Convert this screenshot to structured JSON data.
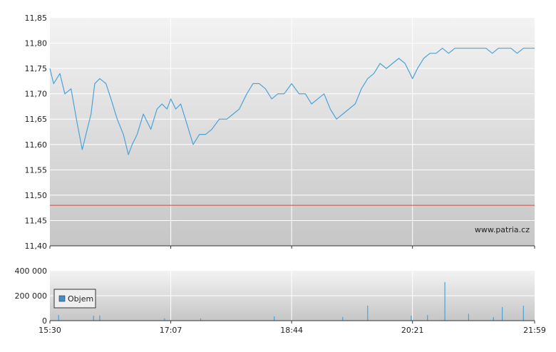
{
  "watermark": "www.patria.cz",
  "colors": {
    "series": "#4aa3d6",
    "reference": "#d24b3c",
    "grid": "#ffffff",
    "axis": "#333333",
    "volume_bar": "#4aa3d6",
    "legend_swatch": "#3f8fcf"
  },
  "chart_data": [
    {
      "type": "line",
      "title": "",
      "xlabel": "",
      "ylabel": "",
      "x_ticks": [
        "15:30",
        "17:07",
        "18:44",
        "20:21",
        "21:59"
      ],
      "xlim": [
        "15:30",
        "21:59"
      ],
      "y_ticks": [
        "11,85",
        "11,80",
        "11,75",
        "11,70",
        "11,65",
        "11,60",
        "11,55",
        "11,50",
        "11,45",
        "11,40"
      ],
      "ylim": [
        11.4,
        11.85
      ],
      "grid": true,
      "reference_line": 11.48,
      "series": [
        {
          "x": [
            "15:30",
            "15:33",
            "15:38",
            "15:42",
            "15:47",
            "15:52",
            "15:56",
            "16:00",
            "16:03",
            "16:06",
            "16:10",
            "16:15",
            "16:19",
            "16:24",
            "16:29",
            "16:33",
            "16:36",
            "16:40",
            "16:45",
            "16:51",
            "16:56",
            "17:00",
            "17:04",
            "17:07",
            "17:11",
            "17:15",
            "17:20",
            "17:25",
            "17:30",
            "17:35",
            "17:40",
            "17:46",
            "17:52",
            "17:57",
            "18:02",
            "18:08",
            "18:13",
            "18:18",
            "18:23",
            "18:28",
            "18:33",
            "18:38",
            "18:44",
            "18:50",
            "18:55",
            "19:00",
            "19:05",
            "19:10",
            "19:15",
            "19:20",
            "19:25",
            "19:30",
            "19:35",
            "19:40",
            "19:45",
            "19:50",
            "19:55",
            "20:00",
            "20:05",
            "20:10",
            "20:15",
            "20:21",
            "20:25",
            "20:30",
            "20:35",
            "20:40",
            "20:45",
            "20:50",
            "20:55",
            "21:00",
            "21:05",
            "21:10",
            "21:15",
            "21:20",
            "21:25",
            "21:30",
            "21:35",
            "21:40",
            "21:45",
            "21:50",
            "21:55",
            "21:59"
          ],
          "values": [
            11.75,
            11.72,
            11.74,
            11.7,
            11.71,
            11.64,
            11.59,
            11.63,
            11.66,
            11.72,
            11.73,
            11.72,
            11.69,
            11.65,
            11.62,
            11.58,
            11.6,
            11.62,
            11.66,
            11.63,
            11.67,
            11.68,
            11.67,
            11.69,
            11.67,
            11.68,
            11.64,
            11.6,
            11.62,
            11.62,
            11.63,
            11.65,
            11.65,
            11.66,
            11.67,
            11.7,
            11.72,
            11.72,
            11.71,
            11.69,
            11.7,
            11.7,
            11.72,
            11.7,
            11.7,
            11.68,
            11.69,
            11.7,
            11.67,
            11.65,
            11.66,
            11.67,
            11.68,
            11.71,
            11.73,
            11.74,
            11.76,
            11.75,
            11.76,
            11.77,
            11.76,
            11.73,
            11.75,
            11.77,
            11.78,
            11.78,
            11.79,
            11.78,
            11.79,
            11.79,
            11.79,
            11.79,
            11.79,
            11.79,
            11.78,
            11.79,
            11.79,
            11.79,
            11.78,
            11.79,
            11.79,
            11.79
          ]
        }
      ]
    },
    {
      "type": "bar",
      "title": "",
      "xlabel": "",
      "ylabel": "",
      "x_ticks": [
        "15:30",
        "17:07",
        "18:44",
        "20:21",
        "21:59"
      ],
      "y_ticks": [
        "400 000",
        "200 000",
        "0"
      ],
      "ylim": [
        0,
        400000
      ],
      "legend": {
        "label": "Objem",
        "placement": "left"
      },
      "series": [
        {
          "name": "Objem",
          "x": [
            "15:37",
            "16:05",
            "16:10",
            "17:02",
            "17:31",
            "18:30",
            "19:25",
            "19:45",
            "20:20",
            "20:33",
            "20:47",
            "21:06",
            "21:26",
            "21:33",
            "21:50"
          ],
          "values": [
            45000,
            40000,
            42000,
            20000,
            18000,
            35000,
            30000,
            120000,
            40000,
            45000,
            310000,
            55000,
            28000,
            110000,
            120000
          ]
        }
      ]
    }
  ]
}
